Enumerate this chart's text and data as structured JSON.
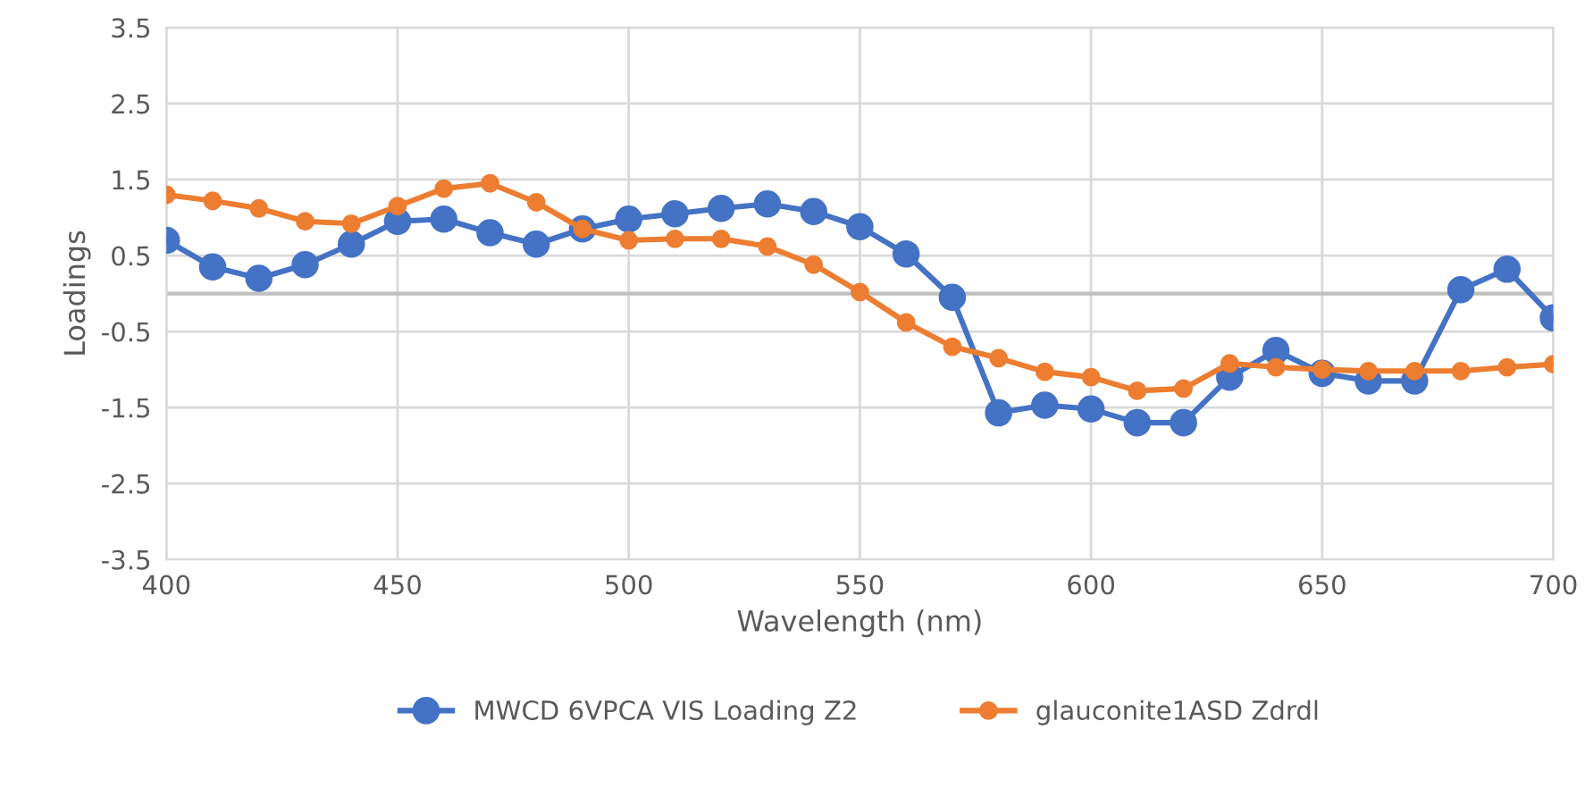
{
  "chart_data": {
    "type": "line",
    "xlabel": "Wavelength (nm)",
    "ylabel": "Loadings",
    "x": [
      400,
      410,
      420,
      430,
      440,
      450,
      460,
      470,
      480,
      490,
      500,
      510,
      520,
      530,
      540,
      550,
      560,
      570,
      580,
      590,
      600,
      610,
      620,
      630,
      640,
      650,
      660,
      670,
      680,
      690,
      700
    ],
    "series": [
      {
        "name": "MWCD 6VPCA VIS Loading Z2",
        "color": "#4472c4",
        "values": [
          0.7,
          0.35,
          0.2,
          0.38,
          0.65,
          0.95,
          0.98,
          0.8,
          0.65,
          0.85,
          0.98,
          1.05,
          1.12,
          1.18,
          1.08,
          0.88,
          0.52,
          -0.05,
          -1.57,
          -1.47,
          -1.52,
          -1.7,
          -1.7,
          -1.1,
          -0.75,
          -1.05,
          -1.15,
          -1.15,
          0.05,
          0.32,
          -0.32
        ]
      },
      {
        "name": "glauconite1ASD Zdrdl",
        "color": "#ed7d31",
        "values": [
          1.3,
          1.22,
          1.12,
          0.95,
          0.92,
          1.15,
          1.38,
          1.45,
          1.2,
          0.85,
          0.7,
          0.72,
          0.72,
          0.62,
          0.38,
          0.02,
          -0.38,
          -0.7,
          -0.85,
          -1.03,
          -1.1,
          -1.28,
          -1.25,
          -0.92,
          -0.97,
          -1.0,
          -1.02,
          -1.02,
          -1.02,
          -0.97,
          -0.93
        ]
      }
    ],
    "xlim": [
      400,
      700
    ],
    "xticks": [
      400,
      450,
      500,
      550,
      600,
      650,
      700
    ],
    "ylim": [
      -3.5,
      3.5
    ],
    "yticks": [
      -3.5,
      -2.5,
      -1.5,
      -0.5,
      0.5,
      1.5,
      2.5,
      3.5
    ],
    "ref_lines": [
      {
        "axis": "y",
        "value": 0,
        "color": "#bfbfbf"
      }
    ],
    "grid": true,
    "legend": "bottom",
    "marker": "circle",
    "line_style": "solid"
  }
}
